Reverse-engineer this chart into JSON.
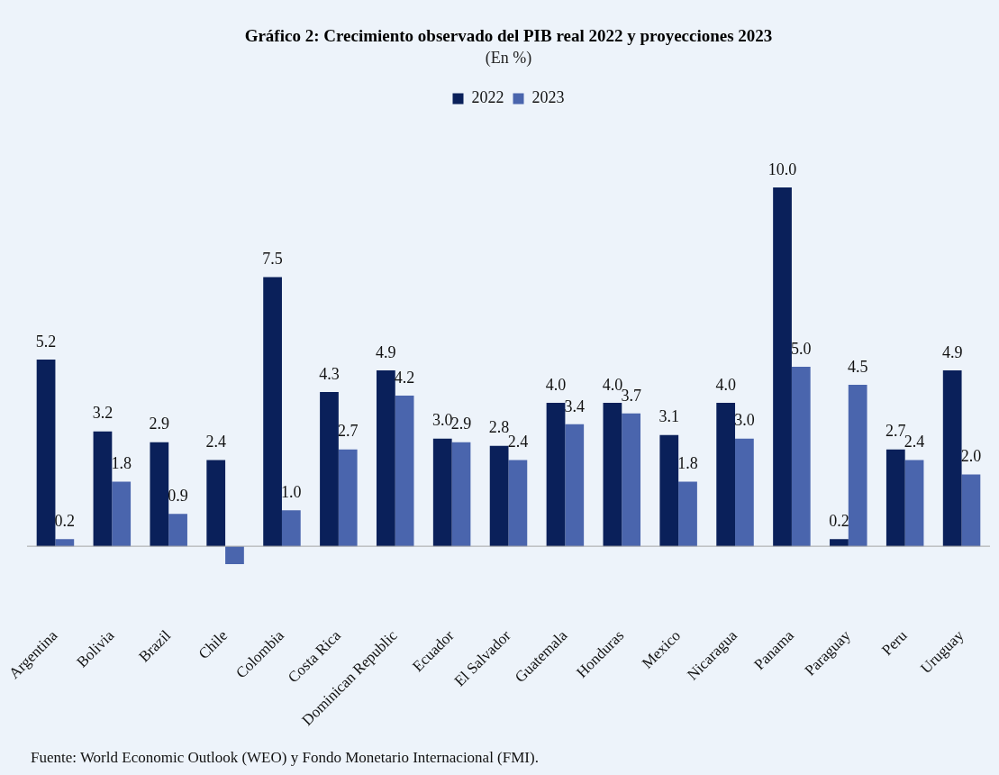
{
  "chart_data": {
    "type": "bar",
    "title": "Gráfico 2: Crecimiento observado del PIB real 2022 y proyecciones 2023",
    "subtitle": "(En %)",
    "categories": [
      "Argentina",
      "Bolivia",
      "Brazil",
      "Chile",
      "Colombia",
      "Costa Rica",
      "Dominican Republic",
      "Ecuador",
      "El Salvador",
      "Guatemala",
      "Honduras",
      "Mexico",
      "Nicaragua",
      "Panama",
      "Paraguay",
      "Peru",
      "Uruguay"
    ],
    "series": [
      {
        "name": "2022",
        "color": "#0a205a",
        "values": [
          5.2,
          3.2,
          2.9,
          2.4,
          7.5,
          4.3,
          4.9,
          3.0,
          2.8,
          4.0,
          4.0,
          3.1,
          4.0,
          10.0,
          0.2,
          2.7,
          4.9
        ],
        "value_labels": [
          "5.2",
          "3.2",
          "2.9",
          "2.4",
          "7.5",
          "4.3",
          "4.9",
          "3.0",
          "2.8",
          "4.0",
          "4.0",
          "3.1",
          "4.0",
          "10.0",
          "0.2",
          "2.7",
          "4.9"
        ]
      },
      {
        "name": "2023",
        "color": "#4a65ad",
        "values": [
          0.2,
          1.8,
          0.9,
          -0.5,
          1.0,
          2.7,
          4.2,
          2.9,
          2.4,
          3.4,
          3.7,
          1.8,
          3.0,
          5.0,
          4.5,
          2.4,
          2.0
        ],
        "value_labels": [
          "0.2",
          "1.8",
          "0.9",
          null,
          "1.0",
          "2.7",
          "4.2",
          "2.9",
          "2.4",
          "3.4",
          "3.7",
          "1.8",
          "3.0",
          "5.0",
          "4.5",
          "2.4",
          "2.0"
        ]
      }
    ],
    "tick_labels": "x",
    "grid": false,
    "legend": "top",
    "annotations": [
      "Fuente: World Economic Outlook (WEO) y Fondo Monetario Internacional (FMI)."
    ]
  }
}
